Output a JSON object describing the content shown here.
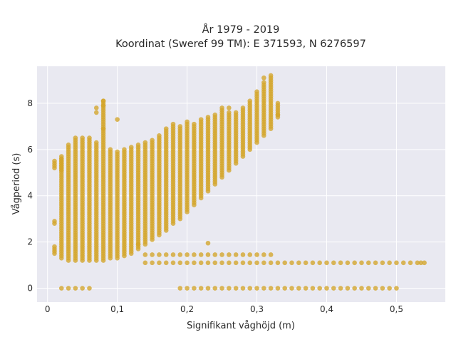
{
  "chart_data": {
    "type": "scatter",
    "title": "År 1979 - 2019",
    "subtitle": "Koordinat (Sweref 99 TM): E 371593, N 6276597",
    "xlabel": "Signifikant våghöjd (m)",
    "ylabel": "Vågperiod (s)",
    "xlim": [
      -0.015,
      0.57
    ],
    "ylim": [
      -0.6,
      9.6
    ],
    "x_ticks": [
      0,
      0.1,
      0.2,
      0.3,
      0.4,
      0.5
    ],
    "x_tick_labels": [
      "0",
      "0,1",
      "0,2",
      "0,3",
      "0,4",
      "0,5"
    ],
    "y_ticks": [
      0,
      2,
      4,
      6,
      8
    ],
    "y_tick_labels": [
      "0",
      "2",
      "4",
      "6",
      "8"
    ],
    "grid": true,
    "background": "#e9e9f1",
    "marker_color": "#d4a52a",
    "bands": [
      {
        "x_start": 0.01,
        "x_end": 0.33,
        "x_step": 0.01,
        "y_low": [
          1.5,
          1.3,
          1.2,
          1.2,
          1.2,
          1.2,
          1.2,
          1.2,
          1.3,
          1.3,
          1.4,
          1.5,
          1.7,
          1.9,
          2.1,
          2.3,
          2.5,
          2.8,
          3.0,
          3.3,
          3.6,
          3.9,
          4.2,
          4.5,
          4.8,
          5.1,
          5.4,
          5.7,
          6.0,
          6.3,
          6.6,
          6.9,
          7.4
        ],
        "y_high": [
          1.8,
          5.7,
          6.2,
          6.5,
          6.5,
          6.5,
          6.3,
          8.1,
          6.0,
          5.9,
          6.0,
          6.1,
          6.2,
          6.3,
          6.4,
          6.6,
          6.9,
          7.1,
          7.0,
          7.2,
          7.1,
          7.3,
          7.4,
          7.5,
          7.8,
          7.6,
          7.6,
          7.8,
          8.1,
          8.5,
          8.9,
          9.1,
          8.0
        ],
        "y_step": 0.1
      },
      {
        "x_start": 0.01,
        "x_end": 0.02,
        "x_step": 0.01,
        "y_low": [
          5.2,
          5.1
        ],
        "y_high": [
          5.5,
          5.6
        ],
        "y_step": 0.1
      },
      {
        "x_start": 0.14,
        "x_end": 0.32,
        "x_step": 0.01,
        "y_low": [
          1.45
        ],
        "y_high": [
          1.45
        ],
        "y_step": 0.1
      },
      {
        "x_start": 0.14,
        "x_end": 0.54,
        "x_step": 0.01,
        "y_low": [
          1.1
        ],
        "y_high": [
          1.1
        ],
        "y_step": 0.1
      },
      {
        "x_start": 0.19,
        "x_end": 0.49,
        "x_step": 0.01,
        "y_low": [
          0.0
        ],
        "y_high": [
          0.0
        ],
        "y_step": 0.1
      }
    ],
    "extra_points": [
      {
        "x": 0.02,
        "y": 0
      },
      {
        "x": 0.03,
        "y": 0
      },
      {
        "x": 0.04,
        "y": 0
      },
      {
        "x": 0.05,
        "y": 0
      },
      {
        "x": 0.06,
        "y": 0
      },
      {
        "x": 0.01,
        "y": 2.9
      },
      {
        "x": 0.01,
        "y": 2.8
      },
      {
        "x": 0.07,
        "y": 7.6
      },
      {
        "x": 0.07,
        "y": 7.8
      },
      {
        "x": 0.08,
        "y": 8.1
      },
      {
        "x": 0.08,
        "y": 7.9
      },
      {
        "x": 0.08,
        "y": 6.9
      },
      {
        "x": 0.1,
        "y": 7.3
      },
      {
        "x": 0.13,
        "y": 1.9
      },
      {
        "x": 0.23,
        "y": 1.95
      },
      {
        "x": 0.26,
        "y": 7.8
      },
      {
        "x": 0.31,
        "y": 9.1
      },
      {
        "x": 0.32,
        "y": 9.2
      },
      {
        "x": 0.33,
        "y": 7.5
      },
      {
        "x": 0.5,
        "y": 0.0
      },
      {
        "x": 0.535,
        "y": 1.1
      }
    ]
  }
}
